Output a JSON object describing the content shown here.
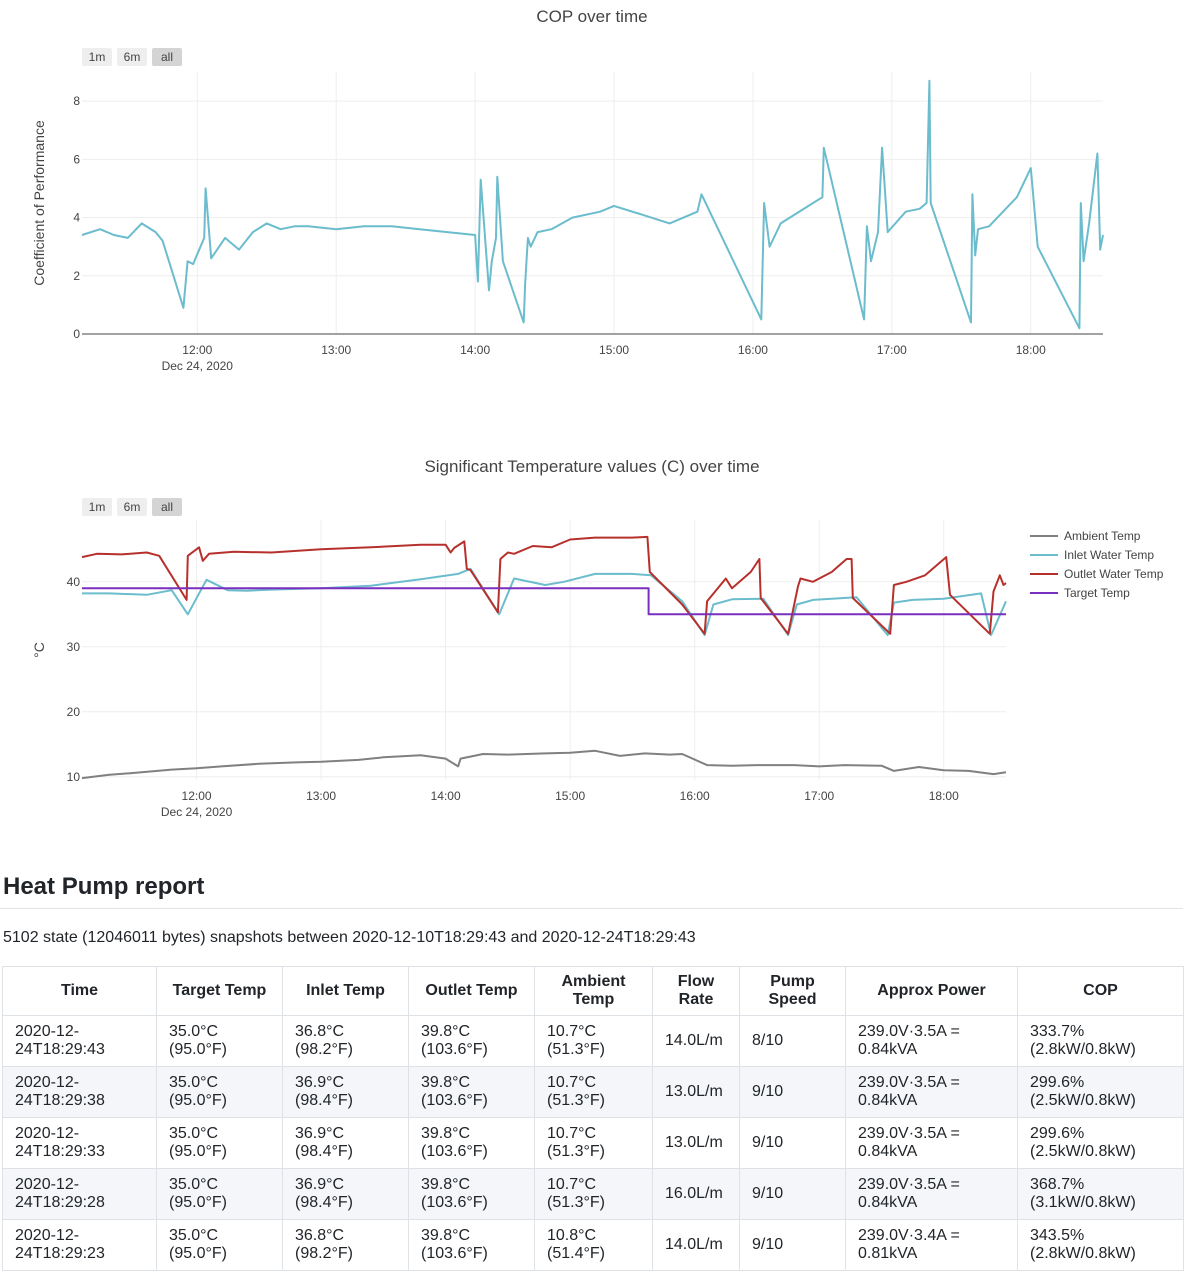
{
  "charts": {
    "range_buttons": [
      "1m",
      "6m",
      "all"
    ],
    "active_range": "all"
  },
  "chart_data": [
    {
      "type": "line",
      "title": "COP over time",
      "xlabel": "",
      "ylabel": "Coefficient of Performance",
      "x_range_hours": [
        11.17,
        18.52
      ],
      "ylim": [
        0,
        9
      ],
      "y_ticks": [
        0,
        2,
        4,
        6,
        8
      ],
      "x_ticks": [
        {
          "hour": 12,
          "label": "12:00",
          "sublabel": "Dec 24, 2020"
        },
        {
          "hour": 13,
          "label": "13:00"
        },
        {
          "hour": 14,
          "label": "14:00"
        },
        {
          "hour": 15,
          "label": "15:00"
        },
        {
          "hour": 16,
          "label": "16:00"
        },
        {
          "hour": 17,
          "label": "17:00"
        },
        {
          "hour": 18,
          "label": "18:00"
        }
      ],
      "color": "#6bbccd",
      "series": [
        {
          "name": "COP",
          "x": [
            11.17,
            11.3,
            11.4,
            11.5,
            11.6,
            11.7,
            11.75,
            11.9,
            11.93,
            11.97,
            12.05,
            12.06,
            12.1,
            12.2,
            12.3,
            12.4,
            12.5,
            12.6,
            12.7,
            12.8,
            13.0,
            13.2,
            13.4,
            13.6,
            13.8,
            14.0,
            14.02,
            14.04,
            14.1,
            14.12,
            14.15,
            14.16,
            14.2,
            14.35,
            14.36,
            14.38,
            14.4,
            14.45,
            14.55,
            14.7,
            14.9,
            15.0,
            15.2,
            15.4,
            15.5,
            15.6,
            15.63,
            16.06,
            16.07,
            16.08,
            16.12,
            16.2,
            16.3,
            16.4,
            16.5,
            16.51,
            16.8,
            16.82,
            16.85,
            16.9,
            16.93,
            16.97,
            17.1,
            17.2,
            17.25,
            17.27,
            17.28,
            17.57,
            17.58,
            17.6,
            17.62,
            17.7,
            17.8,
            17.9,
            18.0,
            18.05,
            18.35,
            18.36,
            18.38,
            18.42,
            18.48,
            18.5,
            18.52
          ],
          "y": [
            3.4,
            3.6,
            3.4,
            3.3,
            3.8,
            3.5,
            3.2,
            0.9,
            2.5,
            2.4,
            3.3,
            5.0,
            2.6,
            3.3,
            2.9,
            3.5,
            3.8,
            3.6,
            3.7,
            3.7,
            3.6,
            3.7,
            3.7,
            3.6,
            3.5,
            3.4,
            1.8,
            5.3,
            1.5,
            2.5,
            3.3,
            5.4,
            2.5,
            0.4,
            1.7,
            3.3,
            3.0,
            3.5,
            3.6,
            4.0,
            4.2,
            4.4,
            4.1,
            3.8,
            4.0,
            4.2,
            4.8,
            0.5,
            2.5,
            4.5,
            3.0,
            3.8,
            4.1,
            4.4,
            4.7,
            6.4,
            0.5,
            3.7,
            2.5,
            3.5,
            6.4,
            3.5,
            4.2,
            4.3,
            4.5,
            8.7,
            4.5,
            0.4,
            4.8,
            2.7,
            3.6,
            3.7,
            4.2,
            4.7,
            5.7,
            3.0,
            0.2,
            4.5,
            2.5,
            3.8,
            6.2,
            2.9,
            3.4
          ]
        }
      ]
    },
    {
      "type": "line",
      "title": "Significant Temperature values (C) over time",
      "xlabel": "",
      "ylabel": "°C",
      "x_range_hours": [
        11.08,
        18.5
      ],
      "ylim": [
        9.5,
        49.5
      ],
      "y_ticks": [
        10,
        20,
        30,
        40
      ],
      "x_ticks": [
        {
          "hour": 12,
          "label": "12:00",
          "sublabel": "Dec 24, 2020"
        },
        {
          "hour": 13,
          "label": "13:00"
        },
        {
          "hour": 14,
          "label": "14:00"
        },
        {
          "hour": 15,
          "label": "15:00"
        },
        {
          "hour": 16,
          "label": "16:00"
        },
        {
          "hour": 17,
          "label": "17:00"
        },
        {
          "hour": 18,
          "label": "18:00"
        }
      ],
      "legend_position": "right",
      "series": [
        {
          "name": "Ambient Temp",
          "color": "#808080",
          "x": [
            11.08,
            11.3,
            11.5,
            11.8,
            12.0,
            12.2,
            12.5,
            12.8,
            13.0,
            13.3,
            13.5,
            13.8,
            14.0,
            14.1,
            14.12,
            14.3,
            14.5,
            14.8,
            15.0,
            15.2,
            15.4,
            15.6,
            15.8,
            15.9,
            16.1,
            16.3,
            16.5,
            16.8,
            17.0,
            17.2,
            17.5,
            17.6,
            17.8,
            18.0,
            18.2,
            18.4,
            18.5
          ],
          "y": [
            9.8,
            10.3,
            10.6,
            11.1,
            11.3,
            11.6,
            12.0,
            12.2,
            12.3,
            12.6,
            13.0,
            13.3,
            12.8,
            11.6,
            12.8,
            13.5,
            13.4,
            13.6,
            13.7,
            14.0,
            13.2,
            13.6,
            13.4,
            13.5,
            11.8,
            11.7,
            11.8,
            11.8,
            11.6,
            11.8,
            11.7,
            10.9,
            11.5,
            11.0,
            10.9,
            10.4,
            10.7
          ]
        },
        {
          "name": "Inlet Water Temp",
          "color": "#6bbccd",
          "x": [
            11.08,
            11.3,
            11.6,
            11.8,
            11.93,
            12.08,
            12.25,
            12.4,
            12.6,
            13.0,
            13.4,
            13.8,
            14.1,
            14.2,
            14.43,
            14.55,
            14.8,
            14.95,
            15.2,
            15.5,
            15.65,
            15.9,
            16.08,
            16.15,
            16.3,
            16.55,
            16.75,
            16.82,
            16.95,
            17.3,
            17.55,
            17.6,
            17.75,
            18.0,
            18.3,
            18.38,
            18.5
          ],
          "y": [
            38.2,
            38.2,
            38.0,
            38.7,
            35.0,
            40.3,
            38.7,
            38.6,
            38.8,
            39.0,
            39.4,
            40.4,
            41.2,
            42.0,
            35.0,
            40.5,
            39.5,
            40.0,
            41.2,
            41.2,
            41.0,
            37.0,
            31.8,
            36.5,
            37.3,
            37.4,
            31.8,
            36.5,
            37.2,
            37.6,
            31.8,
            36.8,
            37.2,
            37.4,
            38.2,
            31.8,
            37.0
          ]
        },
        {
          "name": "Outlet Water Temp",
          "color": "#b7312c",
          "x": [
            11.08,
            11.2,
            11.4,
            11.6,
            11.7,
            11.92,
            11.93,
            12.02,
            12.05,
            12.1,
            12.3,
            12.6,
            13.0,
            13.4,
            13.8,
            14.0,
            14.04,
            14.07,
            14.15,
            14.17,
            14.2,
            14.42,
            14.44,
            14.5,
            14.55,
            14.7,
            14.85,
            15.0,
            15.2,
            15.5,
            15.62,
            15.64,
            15.9,
            16.08,
            16.1,
            16.25,
            16.3,
            16.45,
            16.52,
            16.53,
            16.75,
            16.83,
            16.85,
            16.95,
            17.1,
            17.22,
            17.26,
            17.27,
            17.57,
            17.6,
            17.7,
            17.85,
            18.02,
            18.05,
            18.37,
            18.4,
            18.45,
            18.48,
            18.5
          ],
          "y": [
            43.8,
            44.3,
            44.2,
            44.5,
            44.0,
            37.2,
            44.0,
            45.3,
            43.2,
            44.3,
            44.6,
            44.5,
            45.0,
            45.3,
            45.7,
            45.7,
            44.5,
            45.2,
            46.2,
            42.0,
            41.8,
            35.3,
            43.5,
            44.5,
            44.3,
            45.5,
            45.3,
            46.5,
            46.8,
            46.8,
            46.9,
            41.5,
            36.5,
            32.0,
            37.0,
            40.5,
            39.0,
            41.5,
            43.5,
            37.5,
            32.0,
            39.3,
            40.5,
            40.0,
            41.5,
            43.5,
            43.5,
            37.5,
            32.0,
            39.5,
            40.0,
            41.0,
            43.8,
            38.0,
            32.0,
            38.5,
            41.0,
            39.5,
            39.8
          ]
        },
        {
          "name": "Target Temp",
          "color": "#7b2fbe",
          "x": [
            11.08,
            15.63,
            15.63,
            18.5
          ],
          "y": [
            39.0,
            39.0,
            35.0,
            35.0
          ]
        }
      ]
    }
  ],
  "report": {
    "title": "Heat Pump report",
    "summary": "5102 state (12046011 bytes) snapshots between 2020-12-10T18:29:43 and 2020-12-24T18:29:43",
    "columns": [
      "Time",
      "Target Temp",
      "Inlet Temp",
      "Outlet Temp",
      "Ambient Temp",
      "Flow Rate",
      "Pump Speed",
      "Approx Power",
      "COP"
    ],
    "rows": [
      [
        "2020-12-24T18:29:43",
        "35.0°C (95.0°F)",
        "36.8°C (98.2°F)",
        "39.8°C (103.6°F)",
        "10.7°C (51.3°F)",
        "14.0L/m",
        "8/10",
        "239.0V·3.5A = 0.84kVA",
        "333.7% (2.8kW/0.8kW)"
      ],
      [
        "2020-12-24T18:29:38",
        "35.0°C (95.0°F)",
        "36.9°C (98.4°F)",
        "39.8°C (103.6°F)",
        "10.7°C (51.3°F)",
        "13.0L/m",
        "9/10",
        "239.0V·3.5A = 0.84kVA",
        "299.6% (2.5kW/0.8kW)"
      ],
      [
        "2020-12-24T18:29:33",
        "35.0°C (95.0°F)",
        "36.9°C (98.4°F)",
        "39.8°C (103.6°F)",
        "10.7°C (51.3°F)",
        "13.0L/m",
        "9/10",
        "239.0V·3.5A = 0.84kVA",
        "299.6% (2.5kW/0.8kW)"
      ],
      [
        "2020-12-24T18:29:28",
        "35.0°C (95.0°F)",
        "36.9°C (98.4°F)",
        "39.8°C (103.6°F)",
        "10.7°C (51.3°F)",
        "16.0L/m",
        "9/10",
        "239.0V·3.5A = 0.84kVA",
        "368.7% (3.1kW/0.8kW)"
      ],
      [
        "2020-12-24T18:29:23",
        "35.0°C (95.0°F)",
        "36.8°C (98.2°F)",
        "39.8°C (103.6°F)",
        "10.8°C (51.4°F)",
        "14.0L/m",
        "9/10",
        "239.0V·3.4A = 0.81kVA",
        "343.5% (2.8kW/0.8kW)"
      ]
    ]
  }
}
